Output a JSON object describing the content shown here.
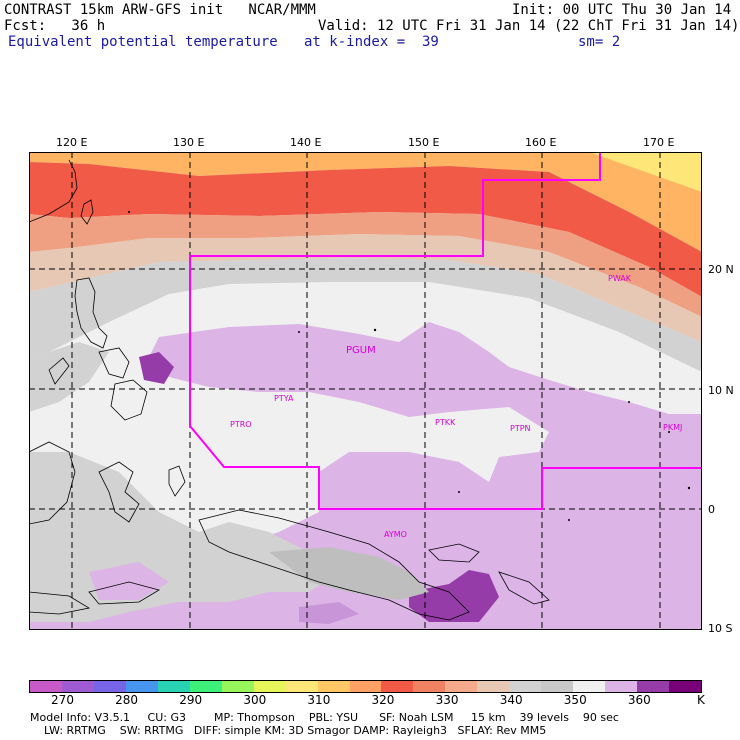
{
  "header": {
    "line1_left": "CONTRAST 15km ARW-GFS init   NCAR/MMM",
    "line1_right": "Init: 00 UTC Thu 30 Jan 14",
    "line2_left": "Fcst:   36 h",
    "line2_right": "Valid: 12 UTC Fri 31 Jan 14 (22 ChT Fri 31 Jan 14)",
    "line3_left": "Equivalent potential temperature",
    "line3_mid": "at k-index =  39",
    "line3_right": "sm= 2"
  },
  "map": {
    "lon_labels": [
      "120 E",
      "130 E",
      "140 E",
      "150 E",
      "160 E",
      "170 E"
    ],
    "lat_labels": [
      "20 N",
      "10 N",
      "0",
      "10 S"
    ],
    "stations": [
      "PWAK",
      "PGUM",
      "PTYA",
      "PTRO",
      "PTKK",
      "PTPN",
      "PKMJ",
      "AYMO"
    ],
    "colors": {
      "boundary": "#ff00ff",
      "background": "#f0f0f0",
      "purple_light": "#dcb4e6",
      "purple_mid": "#c896d8",
      "purple_dark": "#963ca8",
      "grey_light": "#d2d2d2",
      "grey_mid": "#bebebe",
      "tan": "#e6c8b4",
      "salmon": "#f0a082",
      "red": "#f05a46",
      "orange": "#ffb464",
      "yellow": "#ffe678",
      "green": "#c8ff78"
    }
  },
  "legend": {
    "ticks": [
      "270",
      "280",
      "290",
      "300",
      "310",
      "320",
      "330",
      "340",
      "350",
      "360"
    ],
    "unit": "K",
    "colors": [
      "#c85ac8",
      "#a05ad2",
      "#7864e6",
      "#4696f0",
      "#2ad2b4",
      "#3cf07a",
      "#96f55a",
      "#e6f55a",
      "#ffe678",
      "#ffc864",
      "#ffa064",
      "#f05a46",
      "#f08264",
      "#f5aa8c",
      "#e6c8b4",
      "#d2d2d2",
      "#c8c8c8",
      "#f0f0f0",
      "#dcb4e6",
      "#963ca8",
      "#780078"
    ]
  },
  "footer": {
    "line1": "Model Info: V3.5.1     CU: G3        MP: Thompson    PBL: YSU      SF: Noah LSM     15 km    39 levels    90 sec",
    "line2": "    LW: RRTMG    SW: RRTMG   DIFF: simple KM: 3D Smagor DAMP: Rayleigh3   SFLAY: Rev MM5"
  }
}
